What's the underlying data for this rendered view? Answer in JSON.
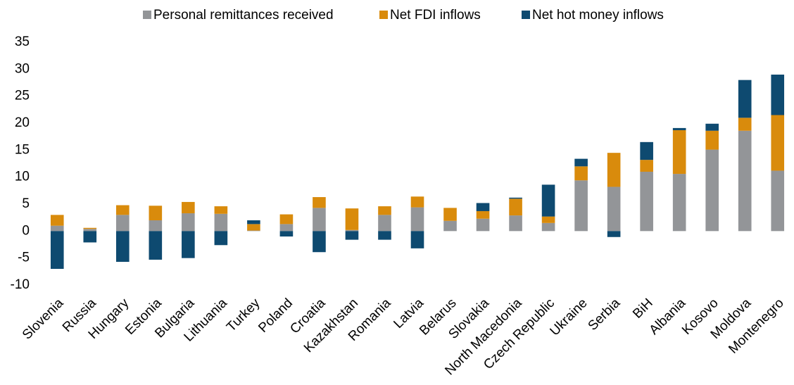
{
  "chart_data": {
    "type": "stacked_bar",
    "categories": [
      "Slovenia",
      "Russia",
      "Hungary",
      "Estonia",
      "Bulgaria",
      "Lithuania",
      "Turkey",
      "Poland",
      "Croatia",
      "Kazakhstan",
      "Romania",
      "Latvia",
      "Belarus",
      "Slovakia",
      "North Macedonia",
      "Czech Republic",
      "Ukraine",
      "Serbia",
      "BiH",
      "Albania",
      "Kosovo",
      "Moldova",
      "Montenegro"
    ],
    "series": [
      {
        "name": "Personal remittances received",
        "color": "#939598",
        "values": [
          1.0,
          0.4,
          3.0,
          2.0,
          3.3,
          3.2,
          0.1,
          1.3,
          4.3,
          0.2,
          3.0,
          4.4,
          1.9,
          2.3,
          2.9,
          1.5,
          9.4,
          8.2,
          11.0,
          10.6,
          15.1,
          18.6,
          11.2
        ]
      },
      {
        "name": "Net FDI inflows",
        "color": "#d98b0c",
        "values": [
          2.0,
          0.2,
          1.8,
          2.7,
          2.1,
          1.4,
          1.2,
          1.8,
          2.0,
          4.0,
          1.6,
          2.0,
          2.4,
          1.4,
          3.1,
          1.2,
          2.6,
          6.3,
          2.2,
          8.1,
          3.5,
          2.4,
          10.3
        ]
      },
      {
        "name": "Net hot money inflows",
        "color": "#0e4a70",
        "values": [
          -7.0,
          -2.1,
          -5.7,
          -5.3,
          -5.0,
          -2.6,
          0.7,
          -1.0,
          -3.9,
          -1.6,
          -1.6,
          -3.2,
          0,
          1.5,
          0.2,
          5.9,
          1.4,
          -1.1,
          3.3,
          0.4,
          1.3,
          7.0,
          7.5
        ]
      }
    ],
    "ylim": [
      -10,
      35
    ],
    "yticks": [
      -10,
      -5,
      0,
      5,
      10,
      15,
      20,
      25,
      30,
      35
    ],
    "legend": "top"
  }
}
